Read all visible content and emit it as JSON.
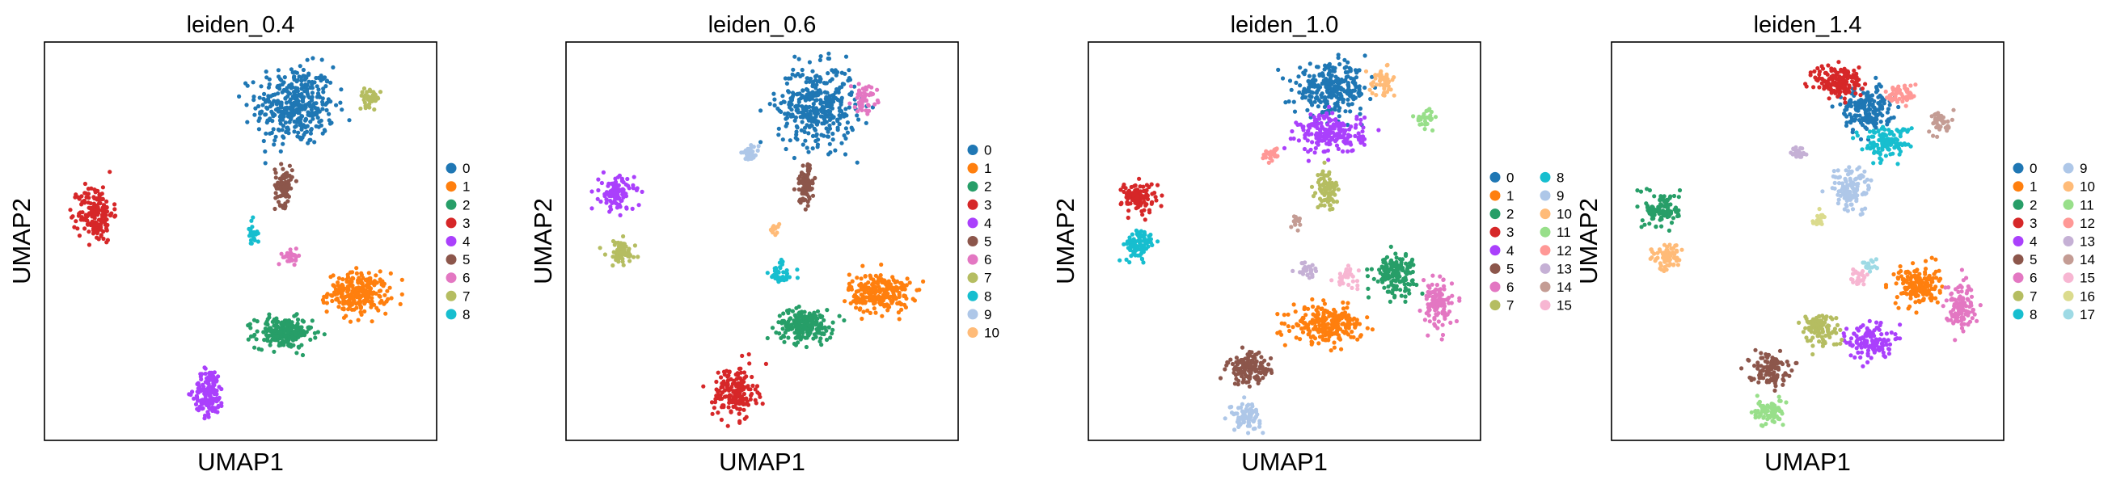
{
  "chart_data": [
    {
      "type": "scatter",
      "title": "leiden_0.4",
      "xlabel": "UMAP1",
      "ylabel": "UMAP2",
      "legend": {
        "placement": "right",
        "entries": [
          {
            "label": "0",
            "color": "#1f77b4"
          },
          {
            "label": "1",
            "color": "#ff7f0e"
          },
          {
            "label": "2",
            "color": "#279e68"
          },
          {
            "label": "3",
            "color": "#d62728"
          },
          {
            "label": "4",
            "color": "#aa40fc"
          },
          {
            "label": "5",
            "color": "#8c564b"
          },
          {
            "label": "6",
            "color": "#e377c2"
          },
          {
            "label": "7",
            "color": "#b5bd61"
          },
          {
            "label": "8",
            "color": "#17becf"
          }
        ]
      },
      "clusters": [
        {
          "label": "0",
          "color": "#1f77b4",
          "cx": 0.64,
          "cy": 0.84,
          "rx": 0.09,
          "ry": 0.09,
          "n": 380
        },
        {
          "label": "1",
          "color": "#ff7f0e",
          "cx": 0.8,
          "cy": 0.37,
          "rx": 0.07,
          "ry": 0.045,
          "n": 250
        },
        {
          "label": "2",
          "color": "#279e68",
          "cx": 0.61,
          "cy": 0.27,
          "rx": 0.065,
          "ry": 0.035,
          "n": 220
        },
        {
          "label": "3",
          "color": "#d62728",
          "cx": 0.13,
          "cy": 0.57,
          "rx": 0.04,
          "ry": 0.065,
          "n": 170
        },
        {
          "label": "4",
          "color": "#aa40fc",
          "cx": 0.42,
          "cy": 0.12,
          "rx": 0.035,
          "ry": 0.055,
          "n": 150
        },
        {
          "label": "5",
          "color": "#8c564b",
          "cx": 0.61,
          "cy": 0.64,
          "rx": 0.02,
          "ry": 0.045,
          "n": 90
        },
        {
          "label": "6",
          "color": "#e377c2",
          "cx": 0.63,
          "cy": 0.46,
          "rx": 0.02,
          "ry": 0.015,
          "n": 30
        },
        {
          "label": "7",
          "color": "#b5bd61",
          "cx": 0.83,
          "cy": 0.86,
          "rx": 0.025,
          "ry": 0.02,
          "n": 40
        },
        {
          "label": "8",
          "color": "#17becf",
          "cx": 0.53,
          "cy": 0.52,
          "rx": 0.012,
          "ry": 0.03,
          "n": 25
        }
      ]
    },
    {
      "type": "scatter",
      "title": "leiden_0.6",
      "xlabel": "UMAP1",
      "ylabel": "UMAP2",
      "legend": {
        "placement": "right",
        "entries": [
          {
            "label": "0",
            "color": "#1f77b4"
          },
          {
            "label": "1",
            "color": "#ff7f0e"
          },
          {
            "label": "2",
            "color": "#279e68"
          },
          {
            "label": "3",
            "color": "#d62728"
          },
          {
            "label": "4",
            "color": "#aa40fc"
          },
          {
            "label": "5",
            "color": "#8c564b"
          },
          {
            "label": "6",
            "color": "#e377c2"
          },
          {
            "label": "7",
            "color": "#b5bd61"
          },
          {
            "label": "8",
            "color": "#17becf"
          },
          {
            "label": "9",
            "color": "#aec7e8"
          },
          {
            "label": "10",
            "color": "#ffbb78"
          }
        ]
      },
      "clusters": [
        {
          "label": "0",
          "color": "#1f77b4",
          "cx": 0.64,
          "cy": 0.84,
          "rx": 0.09,
          "ry": 0.09,
          "n": 380
        },
        {
          "label": "1",
          "color": "#ff7f0e",
          "cx": 0.8,
          "cy": 0.37,
          "rx": 0.07,
          "ry": 0.045,
          "n": 250
        },
        {
          "label": "2",
          "color": "#279e68",
          "cx": 0.61,
          "cy": 0.29,
          "rx": 0.065,
          "ry": 0.035,
          "n": 220
        },
        {
          "label": "3",
          "color": "#d62728",
          "cx": 0.43,
          "cy": 0.12,
          "rx": 0.05,
          "ry": 0.06,
          "n": 170
        },
        {
          "label": "4",
          "color": "#aa40fc",
          "cx": 0.13,
          "cy": 0.62,
          "rx": 0.04,
          "ry": 0.04,
          "n": 110
        },
        {
          "label": "5",
          "color": "#8c564b",
          "cx": 0.61,
          "cy": 0.64,
          "rx": 0.02,
          "ry": 0.045,
          "n": 90
        },
        {
          "label": "6",
          "color": "#e377c2",
          "cx": 0.76,
          "cy": 0.86,
          "rx": 0.03,
          "ry": 0.03,
          "n": 50
        },
        {
          "label": "7",
          "color": "#b5bd61",
          "cx": 0.14,
          "cy": 0.47,
          "rx": 0.035,
          "ry": 0.03,
          "n": 70
        },
        {
          "label": "8",
          "color": "#17becf",
          "cx": 0.55,
          "cy": 0.42,
          "rx": 0.03,
          "ry": 0.03,
          "n": 40
        },
        {
          "label": "9",
          "color": "#aec7e8",
          "cx": 0.47,
          "cy": 0.72,
          "rx": 0.02,
          "ry": 0.015,
          "n": 30
        },
        {
          "label": "10",
          "color": "#ffbb78",
          "cx": 0.53,
          "cy": 0.53,
          "rx": 0.012,
          "ry": 0.012,
          "n": 15
        }
      ]
    },
    {
      "type": "scatter",
      "title": "leiden_1.0",
      "xlabel": "UMAP1",
      "ylabel": "UMAP2",
      "legend": {
        "placement": "right",
        "entries": [
          {
            "label": "0",
            "color": "#1f77b4"
          },
          {
            "label": "1",
            "color": "#ff7f0e"
          },
          {
            "label": "2",
            "color": "#279e68"
          },
          {
            "label": "3",
            "color": "#d62728"
          },
          {
            "label": "4",
            "color": "#aa40fc"
          },
          {
            "label": "5",
            "color": "#8c564b"
          },
          {
            "label": "6",
            "color": "#e377c2"
          },
          {
            "label": "7",
            "color": "#b5bd61"
          },
          {
            "label": "8",
            "color": "#17becf"
          },
          {
            "label": "9",
            "color": "#aec7e8"
          },
          {
            "label": "10",
            "color": "#ffbb78"
          },
          {
            "label": "11",
            "color": "#98df8a"
          },
          {
            "label": "12",
            "color": "#ff9896"
          },
          {
            "label": "13",
            "color": "#c5b0d5"
          },
          {
            "label": "14",
            "color": "#c49c94"
          },
          {
            "label": "15",
            "color": "#f7b6d2"
          }
        ]
      },
      "clusters": [
        {
          "label": "0",
          "color": "#1f77b4",
          "cx": 0.62,
          "cy": 0.88,
          "rx": 0.085,
          "ry": 0.055,
          "n": 280
        },
        {
          "label": "1",
          "color": "#ff7f0e",
          "cx": 0.61,
          "cy": 0.29,
          "rx": 0.08,
          "ry": 0.04,
          "n": 240
        },
        {
          "label": "2",
          "color": "#279e68",
          "cx": 0.78,
          "cy": 0.42,
          "rx": 0.05,
          "ry": 0.045,
          "n": 150
        },
        {
          "label": "3",
          "color": "#d62728",
          "cx": 0.13,
          "cy": 0.61,
          "rx": 0.04,
          "ry": 0.035,
          "n": 110
        },
        {
          "label": "4",
          "color": "#aa40fc",
          "cx": 0.62,
          "cy": 0.77,
          "rx": 0.075,
          "ry": 0.045,
          "n": 200
        },
        {
          "label": "5",
          "color": "#8c564b",
          "cx": 0.41,
          "cy": 0.18,
          "rx": 0.05,
          "ry": 0.035,
          "n": 130
        },
        {
          "label": "6",
          "color": "#e377c2",
          "cx": 0.89,
          "cy": 0.34,
          "rx": 0.035,
          "ry": 0.055,
          "n": 110
        },
        {
          "label": "7",
          "color": "#b5bd61",
          "cx": 0.61,
          "cy": 0.63,
          "rx": 0.025,
          "ry": 0.045,
          "n": 90
        },
        {
          "label": "8",
          "color": "#17becf",
          "cx": 0.13,
          "cy": 0.49,
          "rx": 0.035,
          "ry": 0.035,
          "n": 90
        },
        {
          "label": "9",
          "color": "#aec7e8",
          "cx": 0.4,
          "cy": 0.06,
          "rx": 0.035,
          "ry": 0.03,
          "n": 80
        },
        {
          "label": "10",
          "color": "#ffbb78",
          "cx": 0.75,
          "cy": 0.9,
          "rx": 0.03,
          "ry": 0.03,
          "n": 50
        },
        {
          "label": "11",
          "color": "#98df8a",
          "cx": 0.86,
          "cy": 0.81,
          "rx": 0.02,
          "ry": 0.02,
          "n": 30
        },
        {
          "label": "12",
          "color": "#ff9896",
          "cx": 0.47,
          "cy": 0.72,
          "rx": 0.02,
          "ry": 0.015,
          "n": 30
        },
        {
          "label": "13",
          "color": "#c5b0d5",
          "cx": 0.56,
          "cy": 0.43,
          "rx": 0.03,
          "ry": 0.02,
          "n": 30
        },
        {
          "label": "14",
          "color": "#c49c94",
          "cx": 0.53,
          "cy": 0.55,
          "rx": 0.012,
          "ry": 0.015,
          "n": 15
        },
        {
          "label": "15",
          "color": "#f7b6d2",
          "cx": 0.66,
          "cy": 0.41,
          "rx": 0.025,
          "ry": 0.02,
          "n": 30
        }
      ]
    },
    {
      "type": "scatter",
      "title": "leiden_1.4",
      "xlabel": "UMAP1",
      "ylabel": "UMAP2",
      "legend": {
        "placement": "right",
        "entries": [
          {
            "label": "0",
            "color": "#1f77b4"
          },
          {
            "label": "1",
            "color": "#ff7f0e"
          },
          {
            "label": "2",
            "color": "#279e68"
          },
          {
            "label": "3",
            "color": "#d62728"
          },
          {
            "label": "4",
            "color": "#aa40fc"
          },
          {
            "label": "5",
            "color": "#8c564b"
          },
          {
            "label": "6",
            "color": "#e377c2"
          },
          {
            "label": "7",
            "color": "#b5bd61"
          },
          {
            "label": "8",
            "color": "#17becf"
          },
          {
            "label": "9",
            "color": "#aec7e8"
          },
          {
            "label": "10",
            "color": "#ffbb78"
          },
          {
            "label": "11",
            "color": "#98df8a"
          },
          {
            "label": "12",
            "color": "#ff9896"
          },
          {
            "label": "13",
            "color": "#c5b0d5"
          },
          {
            "label": "14",
            "color": "#c49c94"
          },
          {
            "label": "15",
            "color": "#f7b6d2"
          },
          {
            "label": "16",
            "color": "#dbdb8d"
          },
          {
            "label": "17",
            "color": "#9edae5"
          }
        ]
      },
      "clusters": [
        {
          "label": "0",
          "color": "#1f77b4",
          "cx": 0.65,
          "cy": 0.83,
          "rx": 0.06,
          "ry": 0.05,
          "n": 180
        },
        {
          "label": "1",
          "color": "#ff7f0e",
          "cx": 0.78,
          "cy": 0.39,
          "rx": 0.05,
          "ry": 0.045,
          "n": 160
        },
        {
          "label": "2",
          "color": "#279e68",
          "cx": 0.13,
          "cy": 0.58,
          "rx": 0.04,
          "ry": 0.04,
          "n": 110
        },
        {
          "label": "3",
          "color": "#d62728",
          "cx": 0.58,
          "cy": 0.9,
          "rx": 0.055,
          "ry": 0.04,
          "n": 160
        },
        {
          "label": "4",
          "color": "#aa40fc",
          "cx": 0.66,
          "cy": 0.25,
          "rx": 0.05,
          "ry": 0.04,
          "n": 130
        },
        {
          "label": "5",
          "color": "#8c564b",
          "cx": 0.4,
          "cy": 0.18,
          "rx": 0.045,
          "ry": 0.035,
          "n": 110
        },
        {
          "label": "6",
          "color": "#e377c2",
          "cx": 0.89,
          "cy": 0.34,
          "rx": 0.035,
          "ry": 0.055,
          "n": 110
        },
        {
          "label": "7",
          "color": "#b5bd61",
          "cx": 0.53,
          "cy": 0.28,
          "rx": 0.045,
          "ry": 0.04,
          "n": 100
        },
        {
          "label": "8",
          "color": "#17becf",
          "cx": 0.7,
          "cy": 0.75,
          "rx": 0.055,
          "ry": 0.035,
          "n": 120
        },
        {
          "label": "9",
          "color": "#aec7e8",
          "cx": 0.61,
          "cy": 0.63,
          "rx": 0.045,
          "ry": 0.05,
          "n": 120
        },
        {
          "label": "10",
          "color": "#ffbb78",
          "cx": 0.14,
          "cy": 0.46,
          "rx": 0.035,
          "ry": 0.03,
          "n": 70
        },
        {
          "label": "11",
          "color": "#98df8a",
          "cx": 0.4,
          "cy": 0.07,
          "rx": 0.035,
          "ry": 0.03,
          "n": 80
        },
        {
          "label": "12",
          "color": "#ff9896",
          "cx": 0.74,
          "cy": 0.87,
          "rx": 0.035,
          "ry": 0.025,
          "n": 60
        },
        {
          "label": "13",
          "color": "#c5b0d5",
          "cx": 0.48,
          "cy": 0.72,
          "rx": 0.02,
          "ry": 0.015,
          "n": 30
        },
        {
          "label": "14",
          "color": "#c49c94",
          "cx": 0.84,
          "cy": 0.8,
          "rx": 0.025,
          "ry": 0.025,
          "n": 40
        },
        {
          "label": "15",
          "color": "#f7b6d2",
          "cx": 0.63,
          "cy": 0.41,
          "rx": 0.025,
          "ry": 0.02,
          "n": 30
        },
        {
          "label": "16",
          "color": "#dbdb8d",
          "cx": 0.53,
          "cy": 0.55,
          "rx": 0.015,
          "ry": 0.02,
          "n": 20
        },
        {
          "label": "17",
          "color": "#9edae5",
          "cx": 0.66,
          "cy": 0.44,
          "rx": 0.02,
          "ry": 0.015,
          "n": 20
        }
      ]
    }
  ]
}
